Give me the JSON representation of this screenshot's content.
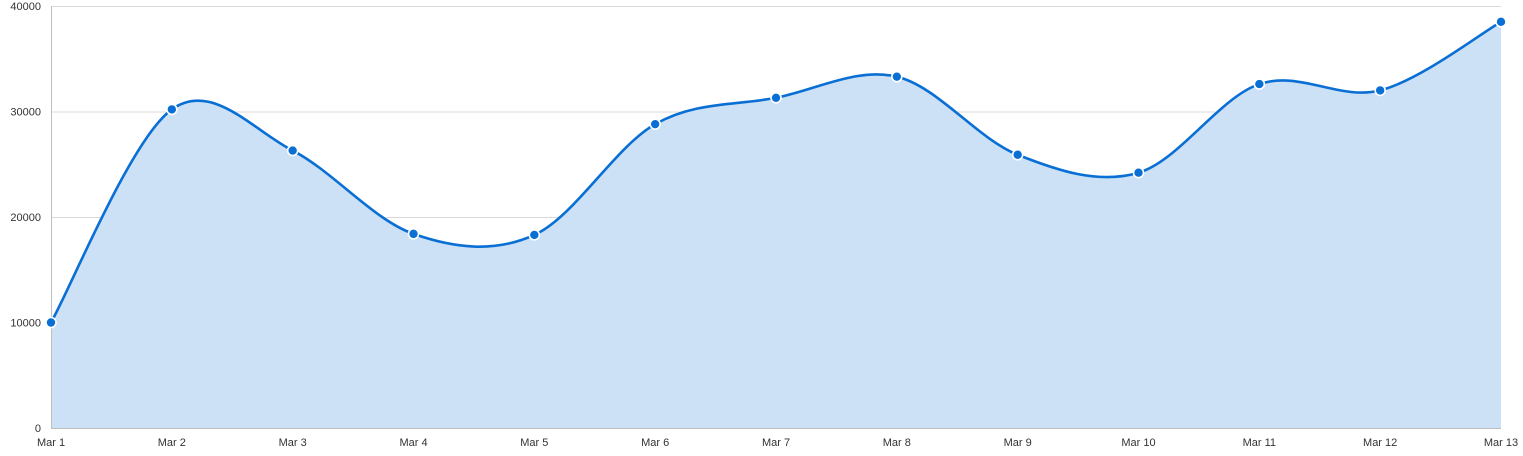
{
  "chart_data": {
    "type": "area",
    "categories": [
      "Mar 1",
      "Mar 2",
      "Mar 3",
      "Mar 4",
      "Mar 5",
      "Mar 6",
      "Mar 7",
      "Mar 8",
      "Mar 9",
      "Mar 10",
      "Mar 11",
      "Mar 12",
      "Mar 13"
    ],
    "series": [
      {
        "values": [
          10000,
          30200,
          26300,
          18400,
          18300,
          28800,
          31300,
          33300,
          25900,
          24200,
          32600,
          32000,
          38500
        ]
      }
    ],
    "y_ticks": [
      0,
      10000,
      20000,
      30000,
      40000
    ],
    "ylim": [
      0,
      40000
    ],
    "grid": true,
    "title": "",
    "xlabel": "",
    "ylabel": "",
    "colors": {
      "line": "#0a6fd4",
      "fill": "#cce1f6",
      "grid": "#d9d9d9",
      "axis": "#bfbfbf",
      "marker_stroke": "#ffffff"
    }
  }
}
